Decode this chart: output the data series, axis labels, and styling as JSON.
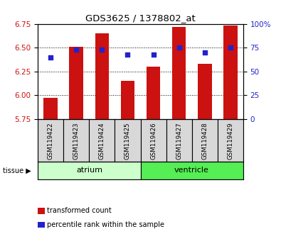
{
  "title": "GDS3625 / 1378802_at",
  "samples": [
    "GSM119422",
    "GSM119423",
    "GSM119424",
    "GSM119425",
    "GSM119426",
    "GSM119427",
    "GSM119428",
    "GSM119429"
  ],
  "bar_values": [
    5.975,
    6.51,
    6.65,
    6.15,
    6.3,
    6.72,
    6.33,
    6.73
  ],
  "bar_bottom": 5.75,
  "dot_values_pct": [
    65,
    73,
    73,
    68,
    68,
    75,
    70,
    75
  ],
  "ylim_left": [
    5.75,
    6.75
  ],
  "ylim_right": [
    0,
    100
  ],
  "yticks_left": [
    5.75,
    6.0,
    6.25,
    6.5,
    6.75
  ],
  "yticks_right": [
    0,
    25,
    50,
    75,
    100
  ],
  "ytick_right_labels": [
    "0",
    "25",
    "50",
    "75",
    "100%"
  ],
  "bar_color": "#cc1111",
  "dot_color": "#2222cc",
  "bar_width": 0.55,
  "atrium_samples": [
    0,
    1,
    2,
    3
  ],
  "ventricle_samples": [
    4,
    5,
    6,
    7
  ],
  "atrium_color": "#ccffcc",
  "ventricle_color": "#55ee55",
  "legend_items": [
    "transformed count",
    "percentile rank within the sample"
  ],
  "grid_color": "#000000"
}
